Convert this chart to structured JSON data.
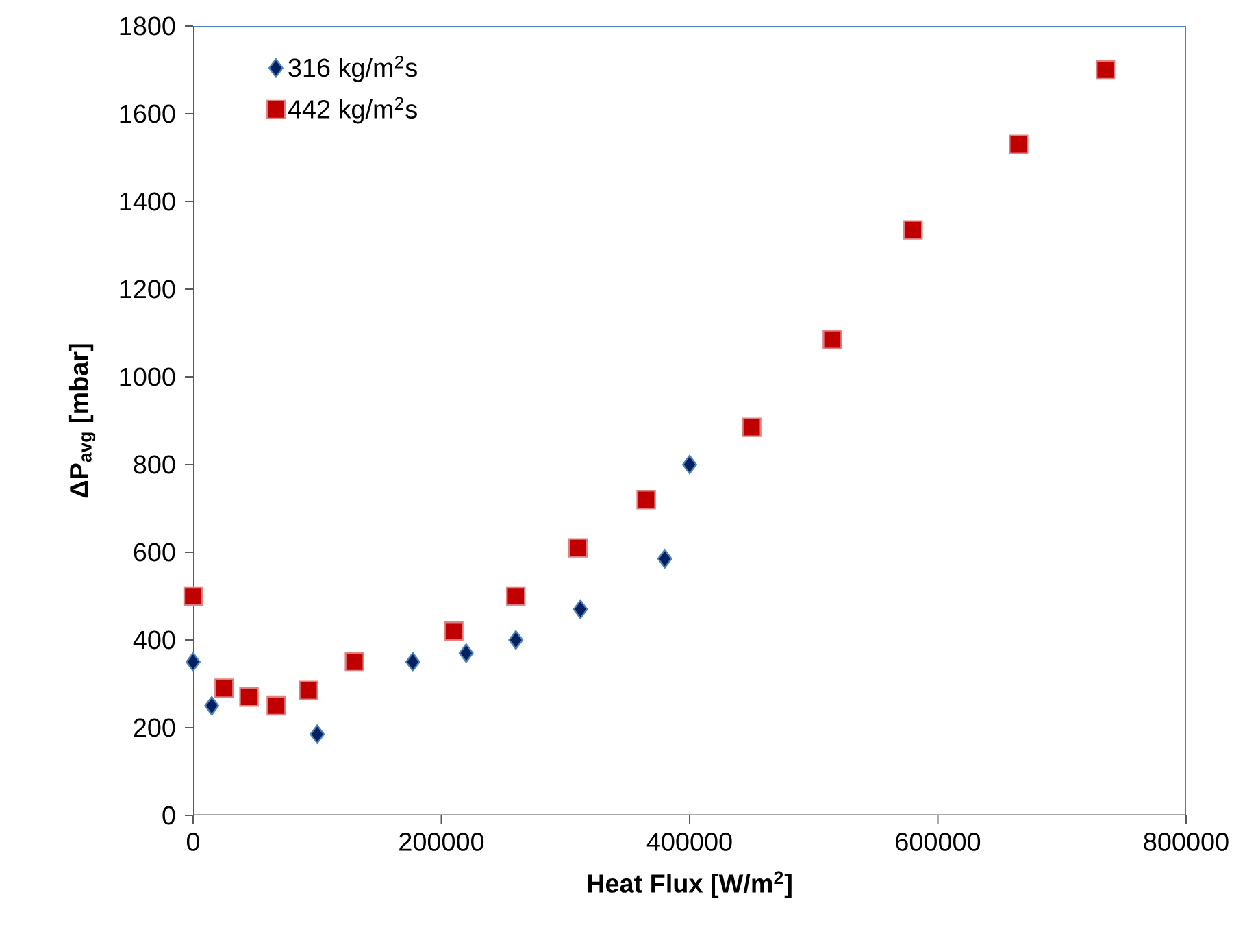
{
  "chart_data": {
    "type": "scatter",
    "xlabel": "Heat Flux [W/m$^{2}$]",
    "ylabel": "ΔP$_{avg}$ [mbar]",
    "xlim": [
      0,
      800000
    ],
    "ylim": [
      0,
      1800
    ],
    "xticks": [
      0,
      200000,
      400000,
      600000,
      800000
    ],
    "yticks": [
      0,
      200,
      400,
      600,
      800,
      1000,
      1200,
      1400,
      1600,
      1800
    ],
    "grid": false,
    "legend": "top left",
    "series": [
      {
        "name": "316 kg/m$^{2}$s",
        "color": "#002060",
        "marker": "diamond",
        "x": [
          0,
          15000,
          100000,
          177000,
          220000,
          260000,
          312000,
          380000,
          400000
        ],
        "values": [
          350,
          250,
          185,
          350,
          370,
          400,
          470,
          585,
          800
        ]
      },
      {
        "name": "442 kg/m$^{2}$s",
        "color": "#c00000",
        "marker": "square",
        "x": [
          0,
          25000,
          45000,
          67000,
          93000,
          130000,
          210000,
          260000,
          310000,
          365000,
          450000,
          515000,
          580000,
          665000,
          735000
        ],
        "values": [
          500,
          290,
          270,
          250,
          285,
          350,
          420,
          500,
          610,
          720,
          885,
          1085,
          1335,
          1530,
          1700
        ]
      }
    ]
  }
}
